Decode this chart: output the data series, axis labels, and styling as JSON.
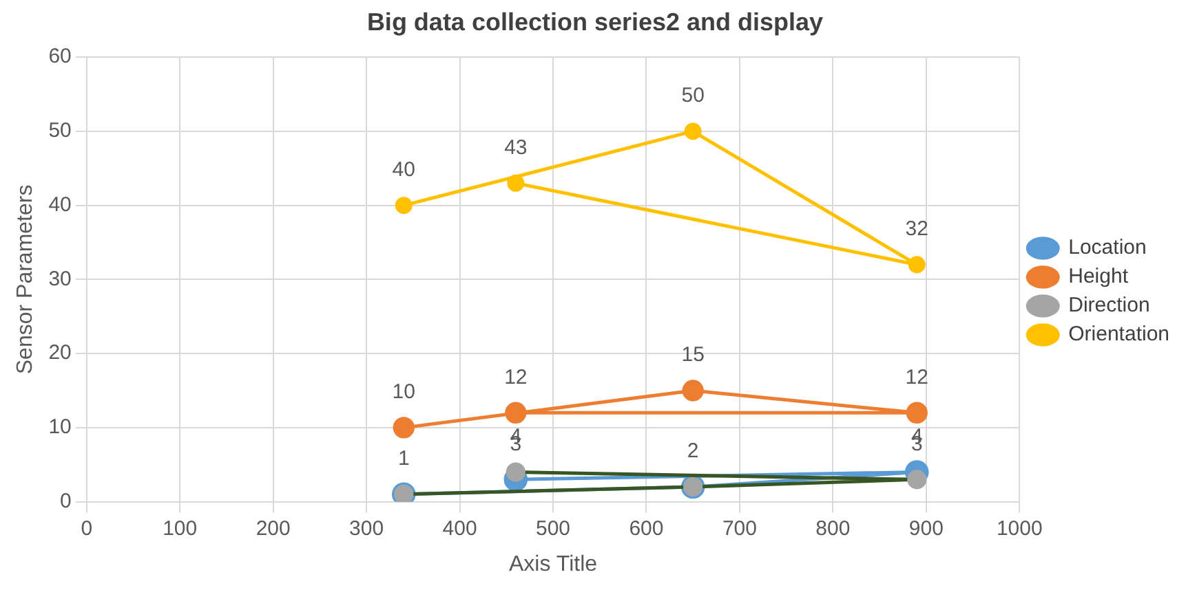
{
  "chart_data": {
    "type": "line",
    "title": "Big data collection series2 and display",
    "xlabel": "Axis Title",
    "ylabel": "Sensor Parameters",
    "x": [
      340,
      650,
      890,
      460
    ],
    "series": [
      {
        "name": "Location",
        "color": "#5b9bd5",
        "values": [
          1,
          2,
          4,
          3
        ],
        "value_labels": [
          null,
          null,
          "4",
          "3"
        ]
      },
      {
        "name": "Height",
        "color": "#ed7d31",
        "values": [
          10,
          15,
          12,
          12
        ]
      },
      {
        "name": "Direction",
        "color": "#375623",
        "colors": [
          "#a5a5a5",
          "#a5a5a5",
          "#a5a5a5",
          "#a5a5a5"
        ],
        "values": [
          1,
          2,
          3,
          4
        ]
      },
      {
        "name": "Orientation",
        "color": "#ffc000",
        "values": [
          40,
          50,
          32,
          43
        ]
      }
    ],
    "xlim": [
      0,
      1000
    ],
    "xticks": [
      0,
      100,
      200,
      300,
      400,
      500,
      600,
      700,
      800,
      900,
      1000
    ],
    "ylim": [
      0,
      60
    ],
    "yticks": [
      0,
      10,
      20,
      30,
      40,
      50,
      60
    ],
    "grid": true,
    "legend": "right",
    "marker": "circle",
    "line_style": "solid",
    "data_labels": true
  }
}
